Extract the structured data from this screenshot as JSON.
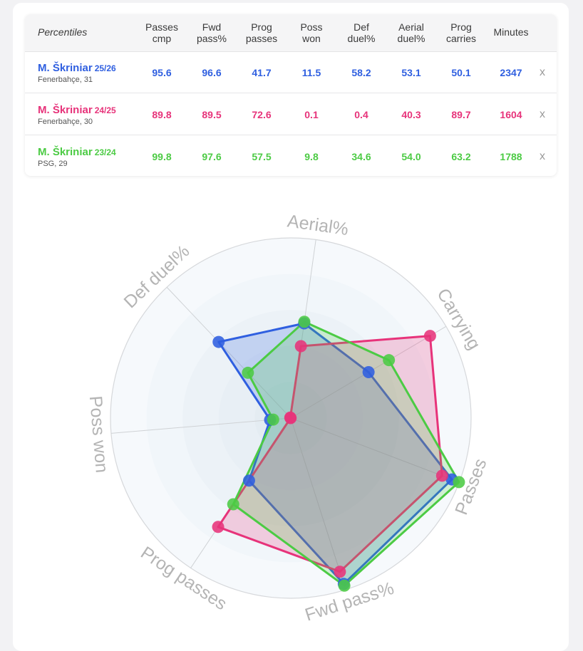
{
  "table": {
    "corner_label": "Percentiles",
    "columns": [
      {
        "line1": "Passes",
        "line2": "cmp"
      },
      {
        "line1": "Fwd",
        "line2": "pass%"
      },
      {
        "line1": "Prog",
        "line2": "passes"
      },
      {
        "line1": "Poss",
        "line2": "won"
      },
      {
        "line1": "Def",
        "line2": "duel%"
      },
      {
        "line1": "Aerial",
        "line2": "duel%"
      },
      {
        "line1": "Prog",
        "line2": "carries"
      },
      {
        "line1": "Minutes",
        "line2": ""
      }
    ],
    "remove_label": "x",
    "rows": [
      {
        "name": "M. Škriniar",
        "season": "25/26",
        "club": "Fenerbahçe, 31",
        "color": "#2f5fe0",
        "values": [
          "95.6",
          "96.6",
          "41.7",
          "11.5",
          "58.2",
          "53.1",
          "50.1",
          "2347"
        ]
      },
      {
        "name": "M. Škriniar",
        "season": "24/25",
        "club": "Fenerbahçe, 30",
        "color": "#e7337a",
        "values": [
          "89.8",
          "89.5",
          "72.6",
          "0.1",
          "0.4",
          "40.3",
          "89.7",
          "1604"
        ]
      },
      {
        "name": "M. Škriniar",
        "season": "23/24",
        "club": "PSG, 29",
        "color": "#4ccb44",
        "values": [
          "99.8",
          "97.6",
          "57.5",
          "9.8",
          "34.6",
          "54.0",
          "63.2",
          "1788"
        ]
      }
    ]
  },
  "chart_data": {
    "type": "radar",
    "axes": [
      "Aerial%",
      "Carrying",
      "Passes",
      "Fwd pass%",
      "Prog passes",
      "Poss won",
      "Def duel%"
    ],
    "range": [
      0,
      100
    ],
    "grid": true,
    "series": [
      {
        "name": "M. Škriniar 25/26",
        "color": "#2f5fe0",
        "values": [
          53.1,
          50.1,
          95.6,
          96.6,
          41.7,
          11.5,
          58.2
        ]
      },
      {
        "name": "M. Škriniar 24/25",
        "color": "#e7337a",
        "values": [
          40.3,
          89.7,
          89.8,
          89.5,
          72.6,
          0.1,
          0.4
        ]
      },
      {
        "name": "M. Škriniar 23/24",
        "color": "#4ccb44",
        "values": [
          54.0,
          63.2,
          99.8,
          97.6,
          57.5,
          9.8,
          34.6
        ]
      }
    ]
  }
}
